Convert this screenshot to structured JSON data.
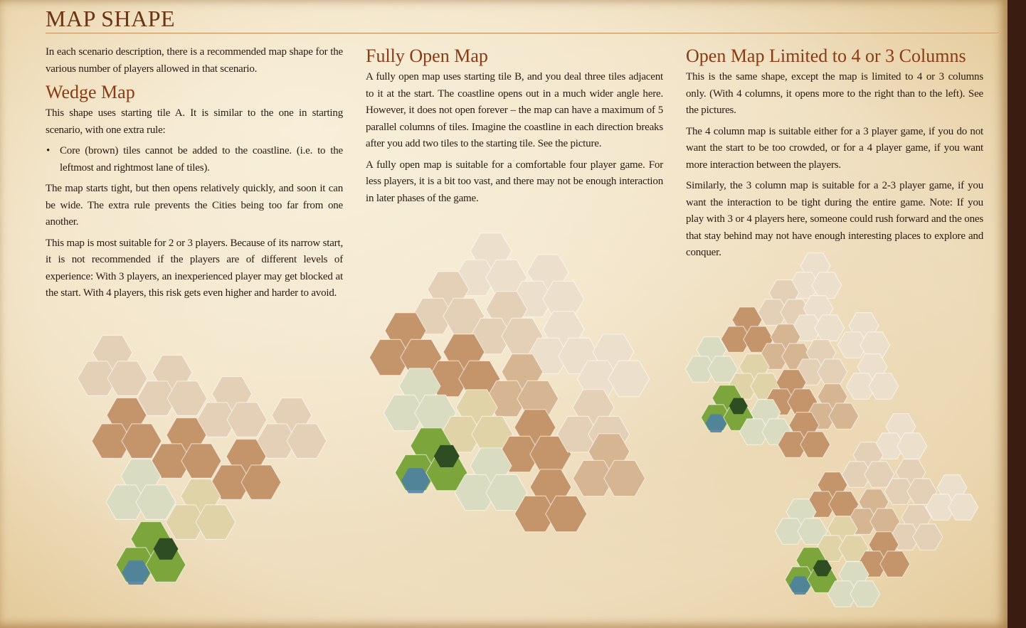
{
  "page_title": "MAP SHAPE",
  "intro": "In each scenario description, there is a recommended map shape for the various number of players allowed in that scenario.",
  "wedge": {
    "heading": "Wedge Map",
    "p1": "This shape uses starting tile A. It is similar to the one in starting scenario, with one extra rule:",
    "bullet": "Core (brown) tiles cannot be added to the coastline. (i.e. to the leftmost and rightmost lane of tiles).",
    "p2": "The map starts tight, but then opens relatively quickly, and soon it can be wide. The extra rule prevents the Cities being too far from one another.",
    "p3": "This map is most suitable for 2 or 3 players. Because of its narrow start, it is not recommended if the players are of different levels of experience: With 3 players, an inexperienced player may get blocked at the start. With 4 players, this risk gets even higher and harder to avoid."
  },
  "fully_open": {
    "heading": "Fully Open Map",
    "p1": "A fully open map uses starting tile B, and you deal three tiles adjacent to it at the start. The coastline opens out in a much wider angle here. However, it does not open forever – the map can have a maximum of 5 parallel columns of tiles. Imagine the coastline in each direction breaks after you add two tiles to the starting tile. See the picture.",
    "p2": "A fully open map is suitable for a comfortable four player game. For less players, it is a bit too vast, and there may not be enough interaction in later phases of the game."
  },
  "limited": {
    "heading": "Open Map Limited to 4 or 3 Columns",
    "p1": "This is the same shape, except the map is limited to 4 or 3 columns only. (With 4 columns, it opens more to the right than to the left). See the pictures.",
    "p2": "The 4 column map is suitable either for a 3 player game, if you do not want the start to be too crowded, or for a 4 player game, if you want more interaction between the players.",
    "p3": "Similarly, the 3 column map is suitable for a 2-3 player game, if you want the interaction to be tight during the entire game. Note: If you play with 3 or 4 players here, someone could rush forward and the ones that stay behind may not have enough interesting places to explore and conquer."
  },
  "colors": {
    "title": "#6b3414",
    "heading": "#8a3a14",
    "tile_core": "#c4956a",
    "tile_mid": "#d5b592",
    "tile_light": "#e4d0b6",
    "tile_pale": "#ecdfcc",
    "tile_grass": "#7ca53c",
    "tile_forest": "#2f4d22",
    "tile_meadow": "#d9dcc0",
    "tile_sand": "#e1d3a8",
    "tile_water": "#4a7ea8"
  }
}
